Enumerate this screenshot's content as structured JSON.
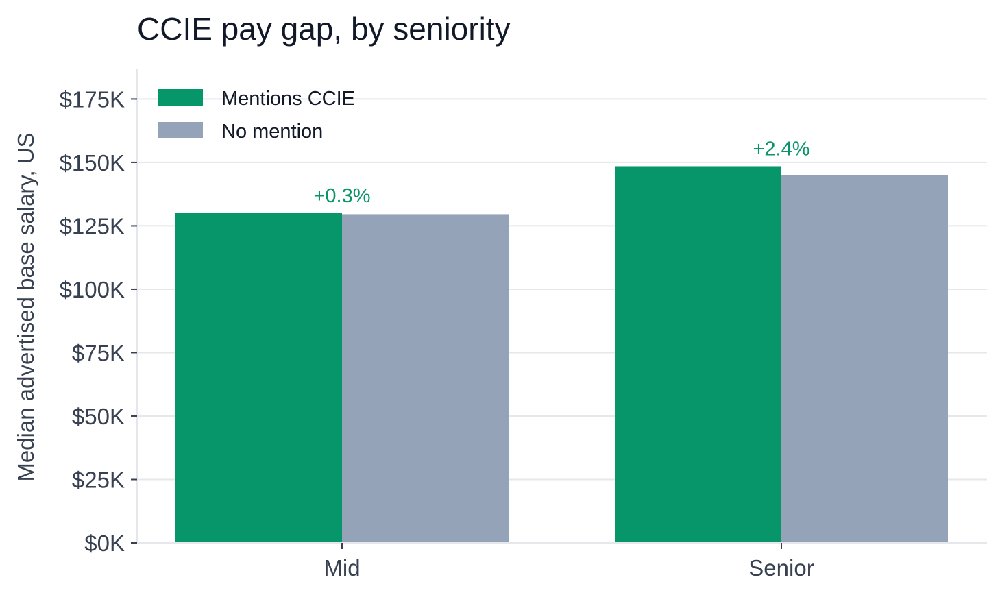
{
  "chart_data": {
    "type": "bar",
    "title": "CCIE pay gap, by seniority",
    "xlabel": "",
    "ylabel": "Median advertised base salary, US",
    "categories": [
      "Mid",
      "Senior"
    ],
    "series": [
      {
        "name": "Mentions CCIE",
        "values": [
          130000,
          148500
        ],
        "color": "#079669"
      },
      {
        "name": "No mention",
        "values": [
          129600,
          145000
        ],
        "color": "#95a3b8"
      }
    ],
    "annotations": [
      "+0.3%",
      "+2.4%"
    ],
    "annotation_color": "#079669",
    "ylim": [
      0,
      187000
    ],
    "yticks": [
      0,
      25000,
      50000,
      75000,
      100000,
      125000,
      150000,
      175000
    ],
    "ytick_labels": [
      "$0K",
      "$25K",
      "$50K",
      "$75K",
      "$100K",
      "$125K",
      "$150K",
      "$175K"
    ],
    "grid": "horizontal",
    "legend_position": "top-left"
  }
}
